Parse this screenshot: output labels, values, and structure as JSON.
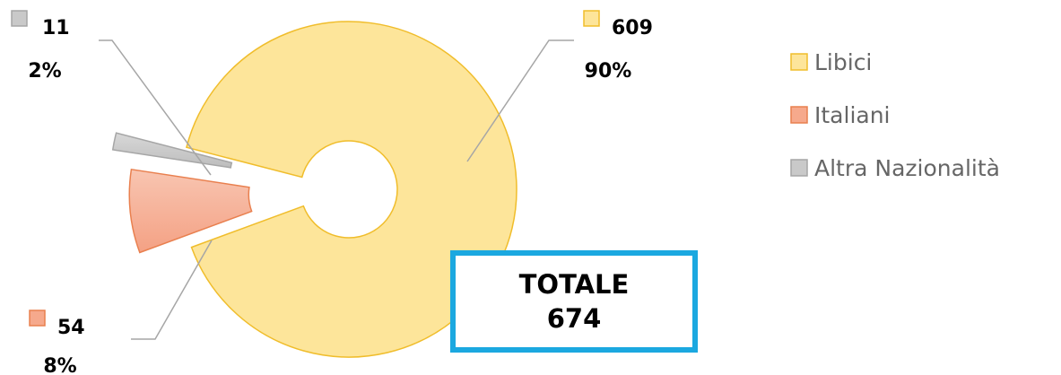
{
  "chart_data": {
    "type": "pie",
    "variant": "exploded-doughnut",
    "series": [
      {
        "categories": [
          "Libici",
          "Italiani",
          "Altra Nazionalità"
        ],
        "values": [
          609,
          54,
          11
        ],
        "percent_labels": [
          "90%",
          "8%",
          "2%"
        ],
        "colors": [
          "#fde59a",
          "#f6a98c",
          "#c9c9c9"
        ],
        "border_colors": [
          "#f0bd2b",
          "#e9804f",
          "#a6a6a6"
        ]
      }
    ],
    "legend": {
      "position": "right",
      "entries": [
        "Libici",
        "Italiani",
        "Altra Nazionalità"
      ]
    }
  },
  "total": {
    "label": "TOTALE",
    "value": "674",
    "border_color": "#1ba8e0"
  }
}
